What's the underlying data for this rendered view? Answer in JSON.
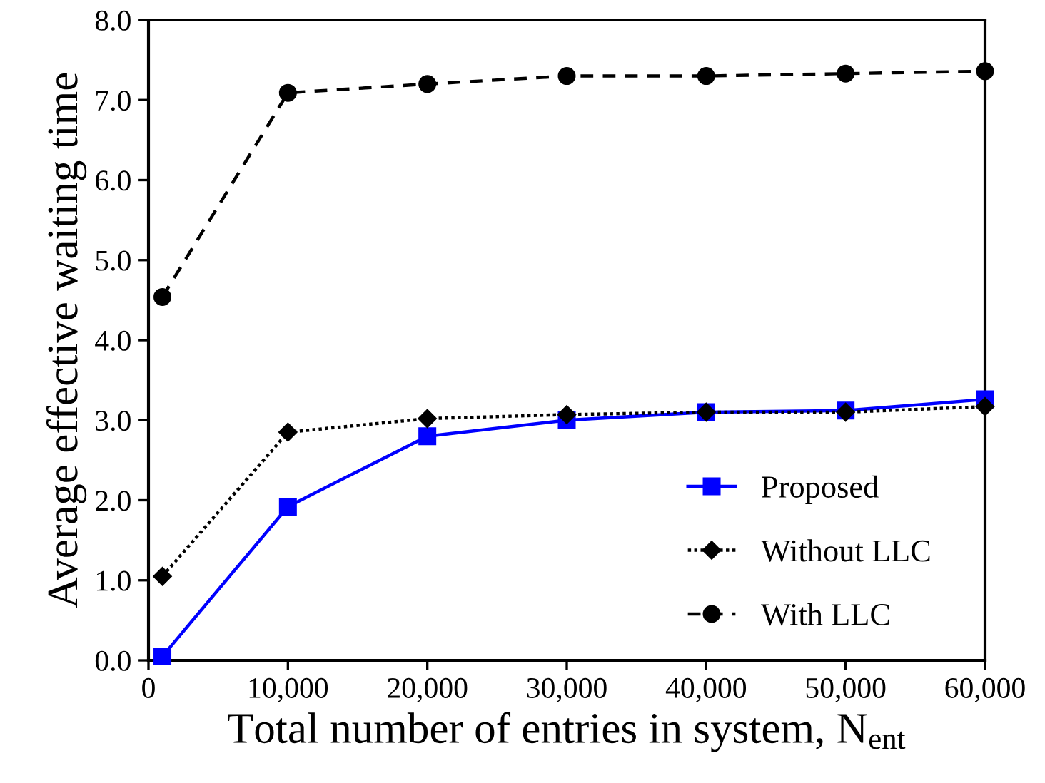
{
  "chart_data": {
    "type": "line",
    "xlabel": "Total number of entries in system, N$_{ent}$",
    "ylabel": "Average effective waiting time",
    "x": [
      1000,
      10000,
      20000,
      30000,
      40000,
      50000,
      60000
    ],
    "series": [
      {
        "name": "Proposed",
        "color": "#0000ff",
        "marker": "square",
        "line_style": "solid",
        "values": [
          0.05,
          1.92,
          2.8,
          3.0,
          3.1,
          3.12,
          3.26
        ]
      },
      {
        "name": "Without LLC",
        "color": "#000000",
        "marker": "diamond",
        "line_style": "dotted",
        "values": [
          1.05,
          2.85,
          3.02,
          3.07,
          3.1,
          3.1,
          3.17
        ]
      },
      {
        "name": "With LLC",
        "color": "#000000",
        "marker": "circle",
        "line_style": "dashed",
        "values": [
          4.54,
          7.09,
          7.2,
          7.3,
          7.3,
          7.33,
          7.36
        ]
      }
    ],
    "xlim": [
      0,
      60000
    ],
    "xticks": [
      0,
      {
        "value": 10000,
        "label": "10,000"
      },
      {
        "value": 20000,
        "label": "20,000"
      },
      {
        "value": 30000,
        "label": "30,000"
      },
      {
        "value": 40000,
        "label": "40,000"
      },
      {
        "value": 50000,
        "label": "50,000"
      },
      {
        "value": 60000,
        "label": "60,000"
      }
    ],
    "ylim": [
      0,
      8
    ],
    "yticks": [
      {
        "value": 0,
        "label": "0.0"
      },
      {
        "value": 1,
        "label": "1.0"
      },
      {
        "value": 2,
        "label": "2.0"
      },
      {
        "value": 3,
        "label": "3.0"
      },
      {
        "value": 4,
        "label": "4.0"
      },
      {
        "value": 5,
        "label": "5.0"
      },
      {
        "value": 6,
        "label": "6.0"
      },
      {
        "value": 7,
        "label": "7.0"
      },
      {
        "value": 8,
        "label": "8.0"
      }
    ],
    "grid": false,
    "legend": "lower right"
  }
}
